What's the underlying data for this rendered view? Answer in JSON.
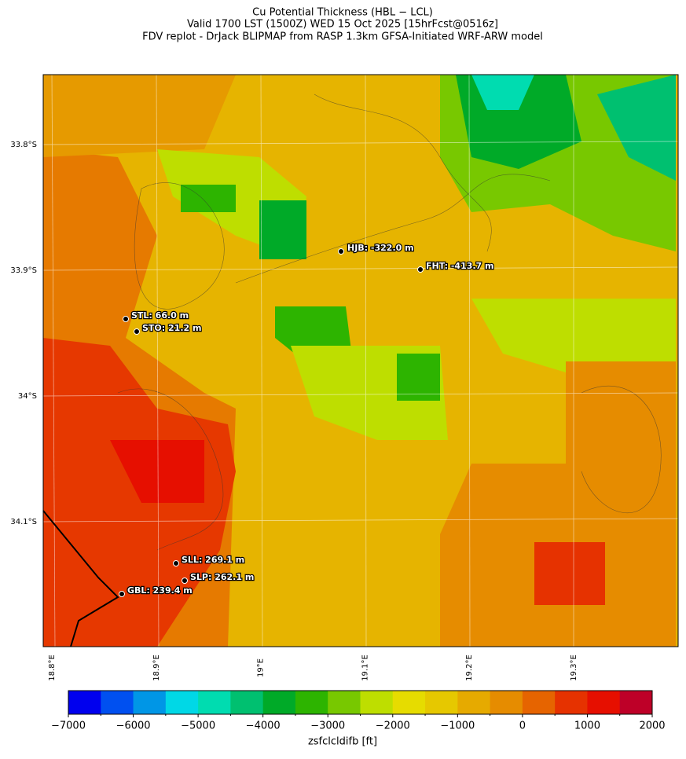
{
  "header": {
    "title": "Cu Potential Thickness (HBL − LCL)",
    "subtitle": "Valid 1700 LST (1500Z) WED 15 Oct 2025 [15hrFcst@0516z]",
    "source": "FDV replot - DrJack BLIPMAP from RASP 1.3km GFSA-Initiated WRF-ARW model"
  },
  "map": {
    "lat_labels": [
      "33.8°S",
      "33.9°S",
      "34°S",
      "34.1°S"
    ],
    "lon_labels": [
      "18.8°E",
      "18.9°E",
      "19°E",
      "19.1°E",
      "19.2°E",
      "19.3°E"
    ],
    "stations": [
      "HJB: -322.0 m",
      "FHT: -413.7 m",
      "STL: 66.0 m",
      "STO: 21.2 m",
      "SLL: 269.1 m",
      "SLP: 262.1 m",
      "GBL: 239.4 m"
    ]
  },
  "colorbar": {
    "label": "zsfclcldifb [ft]",
    "lim": [
      -7000,
      2000
    ],
    "ticks": [
      {
        "value": -7000,
        "label": "−7000"
      },
      {
        "value": -6000,
        "label": "−6000"
      },
      {
        "value": -5000,
        "label": "−5000"
      },
      {
        "value": -4000,
        "label": "−4000"
      },
      {
        "value": -3000,
        "label": "−3000"
      },
      {
        "value": -2000,
        "label": "−2000"
      },
      {
        "value": -1000,
        "label": "−1000"
      },
      0,
      1000,
      2000
    ],
    "colors": [
      "#0000ee",
      "#0050f0",
      "#0096e6",
      "#00d8e6",
      "#00dcb0",
      "#00c070",
      "#00aa28",
      "#2db400",
      "#78c800",
      "#bede00",
      "#e6dc00",
      "#e6c800",
      "#e6aa00",
      "#e68c00",
      "#e66400",
      "#e63200",
      "#e60f00",
      "#be0028"
    ]
  }
}
